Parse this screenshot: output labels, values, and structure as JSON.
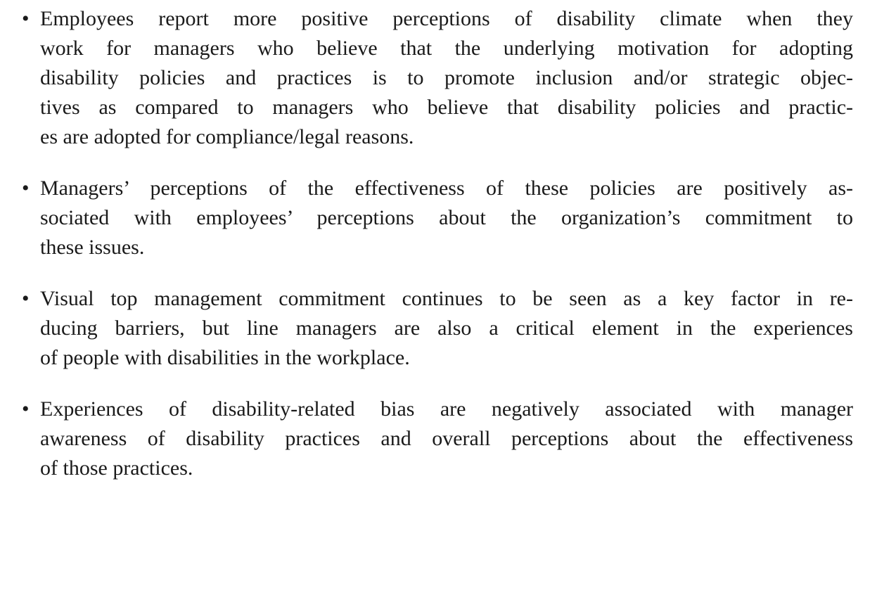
{
  "list": {
    "items": [
      {
        "lines": [
          "Employees report more positive perceptions of disability climate when they",
          "work for managers who believe that the underlying motivation for adopting",
          "disability policies and practices is to promote inclusion and/or strategic objec-",
          "tives as compared to managers who believe that disability policies and practic-",
          "es are adopted for compliance/legal reasons."
        ]
      },
      {
        "lines": [
          "Managers’ perceptions of the effectiveness of these policies are positively as-",
          "sociated with employees’ perceptions about the organization’s commitment to",
          "these issues."
        ]
      },
      {
        "lines": [
          "Visual top management commitment continues to be seen as a key factor in re-",
          "ducing barriers, but line managers are also a critical element in the experiences",
          "of people with disabilities in the workplace."
        ]
      },
      {
        "lines": [
          "Experiences of disability-related bias are negatively associated with manager",
          "awareness of disability practices and overall perceptions about the effectiveness",
          "of those practices."
        ]
      }
    ]
  }
}
